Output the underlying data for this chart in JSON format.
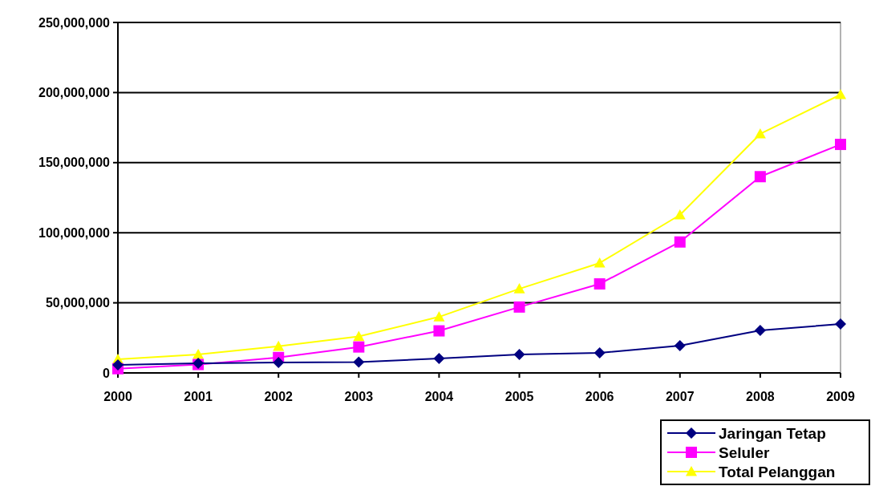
{
  "chart_data": {
    "type": "line",
    "categories": [
      "2000",
      "2001",
      "2002",
      "2003",
      "2004",
      "2005",
      "2006",
      "2007",
      "2008",
      "2009"
    ],
    "series": [
      {
        "name": "Jaringan Tetap",
        "color": "#000080",
        "marker": "diamond",
        "values": [
          5700000,
          6900000,
          7400000,
          7700000,
          10300000,
          13200000,
          14300000,
          19500000,
          30300000,
          34900000
        ]
      },
      {
        "name": "Seluler",
        "color": "#ff00ff",
        "marker": "square",
        "values": [
          3000000,
          6000000,
          11000000,
          18500000,
          30000000,
          47000000,
          63500000,
          93400000,
          140000000,
          163000000
        ]
      },
      {
        "name": "Total Pelanggan",
        "color": "#ffff00",
        "marker": "triangle",
        "values": [
          9700000,
          13200000,
          19000000,
          26000000,
          40000000,
          60000000,
          78400000,
          112700000,
          170500000,
          198500000
        ]
      }
    ],
    "ylim": [
      0,
      250000000
    ],
    "yticks": [
      {
        "value": 0,
        "label": "0"
      },
      {
        "value": 50000000,
        "label": "50,000,000"
      },
      {
        "value": 100000000,
        "label": "100,000,000"
      },
      {
        "value": 150000000,
        "label": "150,000,000"
      },
      {
        "value": 200000000,
        "label": "200,000,000"
      },
      {
        "value": 250000000,
        "label": "250,000,000"
      }
    ],
    "grid": "y",
    "legend": "bottom right"
  }
}
